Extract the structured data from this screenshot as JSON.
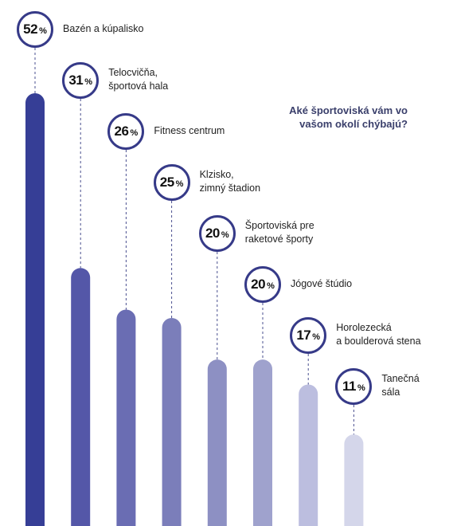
{
  "question_lines": [
    "Aké športoviská vám vo",
    "vašom okolí chýbajú?"
  ],
  "percent_sign": "%",
  "chart_data": {
    "type": "bar",
    "title": "Aké športoviská vám vo vašom okolí chýbajú?",
    "unit": "%",
    "ylim": [
      0,
      60
    ],
    "grid": false,
    "legend": "none",
    "series": [
      {
        "values": [
          52,
          31,
          26,
          25,
          20,
          20,
          17,
          11
        ],
        "colors": [
          "#363e96",
          "#5457a8",
          "#6a6db3",
          "#7b7eba",
          "#8d90c3",
          "#9fa2cd",
          "#bcbedf",
          "#d4d6ea"
        ]
      }
    ],
    "categories": [
      [
        "Bazén a kúpalisko"
      ],
      [
        "Telocvičňa,",
        "športová hala"
      ],
      [
        "Fitness centrum"
      ],
      [
        "Klzisko,",
        "zimný štadion"
      ],
      [
        "Športoviská pre",
        "raketové športy"
      ],
      [
        "Jógové štúdio"
      ],
      [
        "Horolezecká",
        "a boulderová stena"
      ],
      [
        "Tanečná",
        "sála"
      ]
    ]
  }
}
